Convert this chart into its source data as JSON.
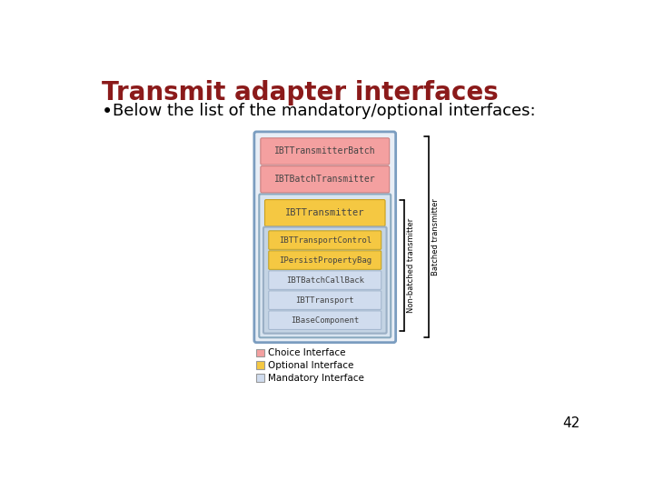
{
  "title": "Transmit adapter interfaces",
  "bullet": "Below the list of the mandatory/optional interfaces:",
  "title_color": "#8B1A1A",
  "bullet_color": "#000000",
  "bg_color": "#ffffff",
  "page_number": "42",
  "boxes": [
    {
      "label": "IBTTransmitterBatch",
      "color": "#F4A0A0",
      "level": 0
    },
    {
      "label": "IBTBatchTransmitter",
      "color": "#F4A0A0",
      "level": 0
    },
    {
      "label": "IBTTransmitter",
      "color": "#F5C842",
      "level": 1
    },
    {
      "label": "IBTTransportControl",
      "color": "#F5C842",
      "level": 2
    },
    {
      "label": "IPersistPropertyBag",
      "color": "#F5C842",
      "level": 2
    },
    {
      "label": "IBTBatchCallBack",
      "color": "#D0DCEE",
      "level": 2
    },
    {
      "label": "IBTTransport",
      "color": "#D0DCEE",
      "level": 2
    },
    {
      "label": "IBaseComponent",
      "color": "#D0DCEE",
      "level": 2
    }
  ],
  "outer_border_color": "#7B9DC0",
  "outer_fill_color": "#E8EEF6",
  "mid_border_color": "#8AAAC0",
  "mid_fill_color": "#D8E4F0",
  "inner_border_color": "#9AAFC5",
  "inner_fill_color": "#C4D4E4",
  "legend": [
    {
      "label": "Choice Interface",
      "color": "#F4A0A0"
    },
    {
      "label": "Optional Interface",
      "color": "#F5C842"
    },
    {
      "label": "Mandatory Interface",
      "color": "#D0DCEE"
    }
  ],
  "brace_label1": "Non-batched transmitter",
  "brace_label2": "Batched transmitter"
}
